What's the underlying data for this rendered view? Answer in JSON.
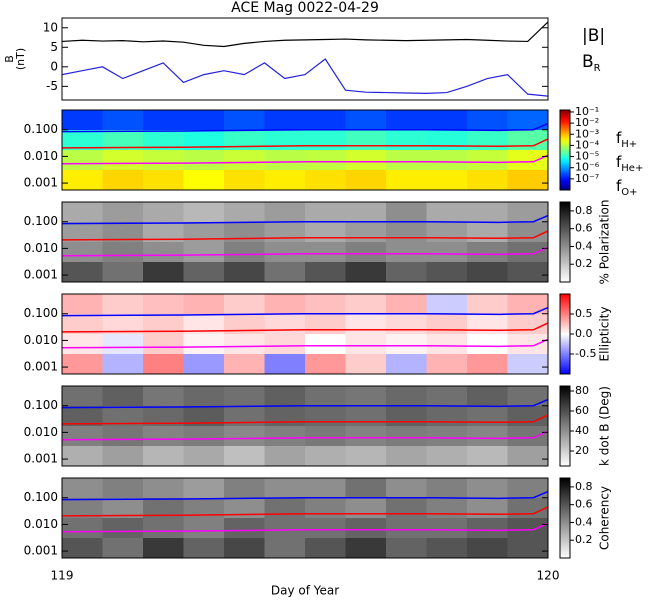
{
  "title": "ACE Mag 0022-04-29",
  "x_axis": {
    "label": "Day of Year",
    "xlim": [
      119,
      120
    ],
    "xticks": [
      119,
      120
    ]
  },
  "chart_data": [
    {
      "type": "line",
      "y_label": [
        "B",
        "(nT)"
      ],
      "ylim": [
        -8.5,
        12.5
      ],
      "yticks": [
        -5,
        0,
        5,
        10
      ],
      "x": [
        119,
        119.0417,
        119.0833,
        119.125,
        119.1667,
        119.2083,
        119.25,
        119.2917,
        119.3333,
        119.375,
        119.4167,
        119.4583,
        119.5,
        119.5417,
        119.5833,
        119.625,
        119.6667,
        119.7083,
        119.75,
        119.7917,
        119.8333,
        119.875,
        119.9167,
        119.9583,
        120
      ],
      "series": [
        {
          "name": "|B|",
          "color": "#000000",
          "values": [
            6.5,
            6.8,
            6.6,
            6.7,
            6.4,
            6.6,
            6.3,
            5.5,
            5.2,
            6.0,
            6.5,
            6.8,
            6.9,
            7.0,
            7.1,
            6.9,
            6.8,
            6.7,
            6.8,
            6.9,
            7.0,
            6.8,
            6.6,
            6.5,
            11.5
          ]
        },
        {
          "name": "BR",
          "color": "#2222dd",
          "values": [
            -2,
            -1,
            0,
            -3,
            -1,
            1,
            -4,
            -2,
            -1,
            -2,
            1,
            -3,
            -2,
            2,
            -6,
            -6.5,
            -6.6,
            -6.7,
            -6.8,
            -6.6,
            -5,
            -3,
            -2,
            -7,
            -7.5
          ]
        }
      ]
    },
    {
      "type": "heatmap",
      "colormap": "jet",
      "ylim": [
        0.00055,
        0.55
      ],
      "ylog": true,
      "yticks": [
        0.001,
        {
          "value": 0.01,
          "label": "0.010"
        },
        {
          "value": 0.1,
          "label": "0.100"
        }
      ],
      "zlim": [
        1e-08,
        0.15
      ],
      "zlog": true,
      "zticks": [
        {
          "value": 0.1,
          "label": "10⁻¹"
        },
        {
          "value": 0.01,
          "label": "10⁻²"
        },
        {
          "value": 0.001,
          "label": "10⁻³"
        },
        {
          "value": 0.0001,
          "label": "10⁻⁴"
        },
        {
          "value": 1e-05,
          "label": "10⁻⁵"
        },
        {
          "value": 1e-06,
          "label": "10⁻⁶"
        },
        {
          "value": 1e-07,
          "label": "10⁻⁷"
        }
      ],
      "z": [
        [
          2e-07,
          3e-07,
          2e-07,
          2e-07,
          3e-07,
          2e-07,
          2e-07,
          3e-07,
          2e-07,
          2e-07,
          3e-07,
          4e-07
        ],
        [
          1e-05,
          1.5e-05,
          1e-05,
          8e-06,
          1.2e-05,
          1e-05,
          1e-05,
          1.4e-05,
          1e-05,
          9e-06,
          1.2e-05,
          2e-05
        ],
        [
          0.0001,
          0.00015,
          0.00012,
          0.0001,
          0.00013,
          0.0001,
          0.00011,
          0.00015,
          0.0001,
          0.0001,
          0.00012,
          0.0002
        ],
        [
          0.0004,
          0.0006,
          0.0005,
          0.0003,
          0.0005,
          0.0004,
          0.0005,
          0.0006,
          0.0004,
          0.0004,
          0.0005,
          0.0007
        ]
      ],
      "x": [
        119,
        119.25,
        119.5,
        119.75,
        119.9,
        119.97,
        120
      ],
      "series": [
        {
          "name": "fH+",
          "color": "#0000ff",
          "values": [
            0.085,
            0.09,
            0.1,
            0.1,
            0.095,
            0.1,
            0.17
          ]
        },
        {
          "name": "fHe+",
          "color": "#ff0000",
          "values": [
            0.021,
            0.022,
            0.025,
            0.025,
            0.024,
            0.025,
            0.045
          ]
        },
        {
          "name": "fO+",
          "color": "#ff00ff",
          "values": [
            0.0053,
            0.0056,
            0.0063,
            0.0063,
            0.006,
            0.0063,
            0.011
          ]
        }
      ]
    },
    {
      "type": "heatmap",
      "colormap": "gray",
      "colorbar_label": "% Polarization",
      "ylim": [
        0.00055,
        0.55
      ],
      "ylog": true,
      "yticks": [
        0.001,
        {
          "value": 0.01,
          "label": "0.010"
        },
        {
          "value": 0.1,
          "label": "0.100"
        }
      ],
      "zlim": [
        0,
        0.9
      ],
      "zticks": [
        0.2,
        0.4,
        0.6,
        0.8
      ],
      "z": [
        [
          0.3,
          0.35,
          0.3,
          0.25,
          0.3,
          0.35,
          0.3,
          0.3,
          0.4,
          0.3,
          0.3,
          0.35
        ],
        [
          0.35,
          0.4,
          0.3,
          0.35,
          0.4,
          0.35,
          0.3,
          0.35,
          0.4,
          0.35,
          0.3,
          0.4
        ],
        [
          0.4,
          0.45,
          0.4,
          0.35,
          0.45,
          0.4,
          0.4,
          0.45,
          0.4,
          0.4,
          0.45,
          0.5
        ],
        [
          0.6,
          0.5,
          0.7,
          0.55,
          0.65,
          0.5,
          0.6,
          0.7,
          0.55,
          0.6,
          0.65,
          0.6
        ]
      ]
    },
    {
      "type": "heatmap",
      "colormap": "bwr",
      "colorbar_label": "Ellipticity",
      "ylim": [
        0.00055,
        0.55
      ],
      "ylog": true,
      "yticks": [
        0.001,
        {
          "value": 0.01,
          "label": "0.010"
        },
        {
          "value": 0.1,
          "label": "0.100"
        }
      ],
      "zlim": [
        -1,
        1
      ],
      "zticks": [
        -0.5,
        {
          "value": 0,
          "label": "0.0"
        },
        0.5
      ],
      "z": [
        [
          0.3,
          0.2,
          0.25,
          0.3,
          0.2,
          0.3,
          0.25,
          0.2,
          0.3,
          -0.2,
          0.2,
          0.3
        ],
        [
          0.2,
          0.15,
          0.2,
          0.1,
          0.2,
          0.15,
          0.2,
          0.1,
          0.15,
          0.2,
          0.1,
          0.2
        ],
        [
          0.1,
          -0.1,
          0.2,
          0.05,
          0.1,
          0.15,
          0.0,
          0.1,
          0.05,
          0.1,
          0.0,
          0.1
        ],
        [
          0.4,
          -0.3,
          0.5,
          -0.4,
          0.3,
          -0.5,
          0.4,
          0.2,
          -0.3,
          0.3,
          0.4,
          -0.2
        ]
      ]
    },
    {
      "type": "heatmap",
      "colormap": "gray",
      "colorbar_label": "k dot B (Deg)",
      "ylim": [
        0.00055,
        0.55
      ],
      "ylog": true,
      "yticks": [
        0.001,
        {
          "value": 0.01,
          "label": "0.010"
        },
        {
          "value": 0.1,
          "label": "0.100"
        }
      ],
      "zlim": [
        5,
        85
      ],
      "zticks": [
        20,
        40,
        60,
        80
      ],
      "z": [
        [
          50,
          55,
          48,
          52,
          50,
          55,
          50,
          48,
          52,
          50,
          55,
          50
        ],
        [
          55,
          50,
          52,
          56,
          50,
          54,
          52,
          50,
          55,
          52,
          50,
          55
        ],
        [
          45,
          48,
          44,
          46,
          42,
          45,
          47,
          44,
          46,
          45,
          43,
          48
        ],
        [
          30,
          35,
          28,
          32,
          25,
          34,
          30,
          28,
          33,
          30,
          27,
          35
        ]
      ]
    },
    {
      "type": "heatmap",
      "colormap": "gray",
      "colorbar_label": "Coherency",
      "ylim": [
        0.00055,
        0.55
      ],
      "ylog": true,
      "yticks": [
        0.001,
        {
          "value": 0.01,
          "label": "0.010"
        },
        {
          "value": 0.1,
          "label": "0.100"
        }
      ],
      "zlim": [
        0,
        0.9
      ],
      "zticks": [
        0.2,
        0.4,
        0.6,
        0.8
      ],
      "z": [
        [
          0.4,
          0.45,
          0.4,
          0.35,
          0.45,
          0.4,
          0.4,
          0.5,
          0.4,
          0.45,
          0.4,
          0.45
        ],
        [
          0.45,
          0.4,
          0.5,
          0.45,
          0.4,
          0.5,
          0.45,
          0.4,
          0.5,
          0.45,
          0.4,
          0.5
        ],
        [
          0.5,
          0.55,
          0.5,
          0.45,
          0.55,
          0.5,
          0.5,
          0.55,
          0.5,
          0.5,
          0.55,
          0.6
        ],
        [
          0.6,
          0.5,
          0.7,
          0.55,
          0.65,
          0.5,
          0.6,
          0.7,
          0.55,
          0.6,
          0.65,
          0.6
        ]
      ]
    }
  ]
}
